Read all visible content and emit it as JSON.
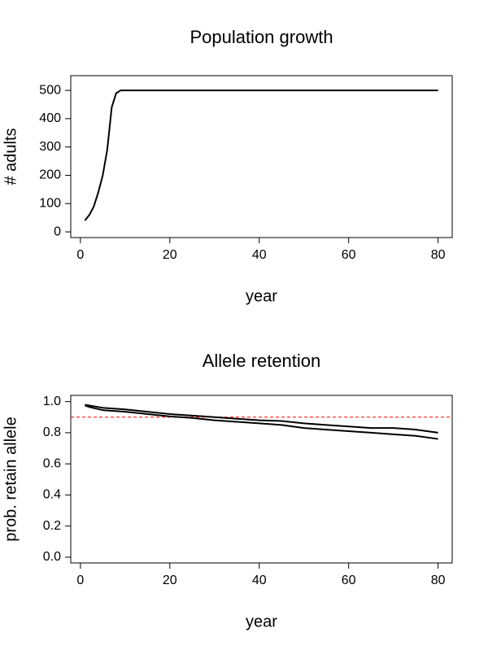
{
  "chart_data": [
    {
      "type": "line",
      "title": "Population growth",
      "xlabel": "year",
      "ylabel": "# adults",
      "x": [
        1,
        2,
        3,
        4,
        5,
        6,
        7,
        8,
        9,
        10,
        11,
        12,
        20,
        30,
        40,
        50,
        60,
        70,
        80
      ],
      "series": [
        {
          "color": "#000000",
          "values": [
            40,
            60,
            90,
            140,
            200,
            290,
            440,
            490,
            500,
            500,
            500,
            500,
            500,
            500,
            500,
            500,
            500,
            500,
            500
          ]
        }
      ],
      "xlim": [
        -2.16,
        83.16
      ],
      "ylim": [
        -20,
        552
      ],
      "xticks": [
        0,
        20,
        40,
        60,
        80
      ],
      "yticks": [
        0,
        100,
        200,
        300,
        400,
        500
      ]
    },
    {
      "type": "line",
      "title": "Allele retention",
      "xlabel": "year",
      "ylabel": "prob. retain allele",
      "x": [
        1,
        2,
        5,
        10,
        15,
        20,
        25,
        30,
        35,
        40,
        45,
        50,
        55,
        60,
        65,
        70,
        75,
        80
      ],
      "series": [
        {
          "color": "#000000",
          "values": [
            0.98,
            0.975,
            0.96,
            0.95,
            0.935,
            0.92,
            0.91,
            0.9,
            0.89,
            0.88,
            0.875,
            0.86,
            0.85,
            0.84,
            0.83,
            0.83,
            0.82,
            0.8
          ]
        },
        {
          "color": "#000000",
          "values": [
            0.975,
            0.965,
            0.945,
            0.935,
            0.92,
            0.905,
            0.895,
            0.88,
            0.87,
            0.86,
            0.85,
            0.83,
            0.82,
            0.81,
            0.8,
            0.79,
            0.78,
            0.76
          ]
        }
      ],
      "hline": {
        "value": 0.9,
        "color": "#ff0000"
      },
      "xlim": [
        -2.16,
        83.16
      ],
      "ylim": [
        -0.037,
        1.04
      ],
      "xticks": [
        0,
        20,
        40,
        60,
        80
      ],
      "yticks": [
        {
          "value": 0,
          "label": "0.0"
        },
        0.2,
        0.4,
        0.6,
        0.8,
        {
          "value": 1,
          "label": "1.0"
        }
      ]
    }
  ]
}
